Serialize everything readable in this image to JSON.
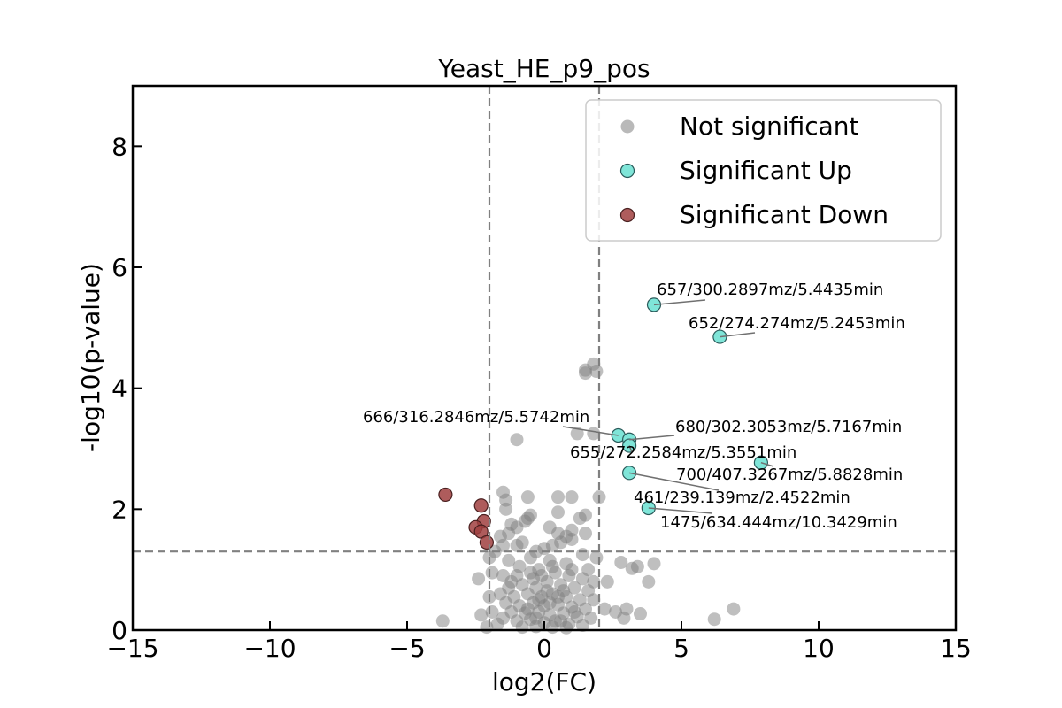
{
  "chart_data": {
    "type": "scatter",
    "title": "Yeast_HE_p9_pos",
    "xlabel": "log2(FC)",
    "ylabel": "-log10(p-value)",
    "xlim": [
      -15,
      15
    ],
    "ylim": [
      0,
      9
    ],
    "x_ticks": [
      -15,
      -10,
      -5,
      0,
      5,
      10,
      15
    ],
    "x_tick_labels": [
      "−15",
      "−10",
      "−5",
      "0",
      "5",
      "10",
      "15"
    ],
    "y_ticks": [
      0,
      2,
      4,
      6,
      8
    ],
    "y_tick_labels": [
      "0",
      "2",
      "4",
      "6",
      "8"
    ],
    "thresholds": {
      "fc": [
        -2,
        2
      ],
      "p": 1.3
    },
    "grid": false,
    "legend_position": "top-right",
    "series": [
      {
        "name": "Not significant",
        "color": "#808080",
        "points": [
          [
            1.8,
            4.4
          ],
          [
            1.5,
            4.3
          ],
          [
            1.5,
            4.25
          ],
          [
            1.9,
            4.28
          ],
          [
            -1,
            3.15
          ],
          [
            1.2,
            3.25
          ],
          [
            1.8,
            3.25
          ],
          [
            -1.5,
            2.28
          ],
          [
            -0.6,
            2.2
          ],
          [
            -1.4,
            2.15
          ],
          [
            -1.4,
            2.0
          ],
          [
            0.5,
            2.2
          ],
          [
            1.0,
            2.2
          ],
          [
            2.0,
            2.2
          ],
          [
            -0.5,
            1.9
          ],
          [
            0.5,
            1.95
          ],
          [
            1.5,
            1.9
          ],
          [
            1.3,
            1.85
          ],
          [
            -1.2,
            1.75
          ],
          [
            -1.0,
            1.7
          ],
          [
            -0.7,
            1.8
          ],
          [
            -0.6,
            1.85
          ],
          [
            0.2,
            1.7
          ],
          [
            1.0,
            1.65
          ],
          [
            -1.6,
            1.55
          ],
          [
            -1.3,
            1.6
          ],
          [
            0.5,
            1.6
          ],
          [
            0.8,
            1.55
          ],
          [
            1.5,
            1.6
          ],
          [
            1.0,
            1.5
          ],
          [
            0.6,
            1.45
          ],
          [
            0.3,
            1.4
          ],
          [
            -1.5,
            1.4
          ],
          [
            -1.0,
            1.4
          ],
          [
            -0.8,
            1.45
          ],
          [
            -0.3,
            1.3
          ],
          [
            0.0,
            1.35
          ],
          [
            1.4,
            1.25
          ],
          [
            1.9,
            1.2
          ],
          [
            -1.3,
            1.15
          ],
          [
            -0.5,
            1.2
          ],
          [
            0.2,
            1.15
          ],
          [
            0.8,
            1.1
          ],
          [
            -0.9,
            1.05
          ],
          [
            -0.2,
            1.0
          ],
          [
            1.0,
            1.0
          ],
          [
            -2.0,
            1.2
          ],
          [
            -1.8,
            1.3
          ],
          [
            2.8,
            1.12
          ],
          [
            3.4,
            1.05
          ],
          [
            3.2,
            1.02
          ],
          [
            4.0,
            1.1
          ],
          [
            3.8,
            0.8
          ],
          [
            2.3,
            0.8
          ],
          [
            -1.9,
            0.95
          ],
          [
            -1.5,
            0.9
          ],
          [
            -2.4,
            0.85
          ],
          [
            -1.0,
            0.9
          ],
          [
            -0.5,
            0.95
          ],
          [
            0.4,
            0.95
          ],
          [
            0.9,
            0.9
          ],
          [
            1.4,
            0.85
          ],
          [
            1.8,
            0.8
          ],
          [
            -1.2,
            0.8
          ],
          [
            -0.8,
            0.75
          ],
          [
            -0.3,
            0.7
          ],
          [
            0.1,
            0.8
          ],
          [
            0.6,
            0.75
          ],
          [
            1.1,
            0.7
          ],
          [
            1.6,
            0.65
          ],
          [
            -1.6,
            0.6
          ],
          [
            -1.1,
            0.55
          ],
          [
            -0.6,
            0.6
          ],
          [
            -0.1,
            0.55
          ],
          [
            0.3,
            0.6
          ],
          [
            0.8,
            0.55
          ],
          [
            1.3,
            0.5
          ],
          [
            -1.4,
            0.45
          ],
          [
            -0.9,
            0.4
          ],
          [
            -0.4,
            0.45
          ],
          [
            0.0,
            0.4
          ],
          [
            0.5,
            0.42
          ],
          [
            1.0,
            0.38
          ],
          [
            1.5,
            0.35
          ],
          [
            -1.2,
            0.3
          ],
          [
            -0.7,
            0.28
          ],
          [
            -0.2,
            0.3
          ],
          [
            0.2,
            0.25
          ],
          [
            0.7,
            0.28
          ],
          [
            1.2,
            0.22
          ],
          [
            1.7,
            0.2
          ],
          [
            -1.5,
            0.2
          ],
          [
            -1.0,
            0.15
          ],
          [
            -0.5,
            0.18
          ],
          [
            0.0,
            0.12
          ],
          [
            0.4,
            0.15
          ],
          [
            0.9,
            0.1
          ],
          [
            1.4,
            0.08
          ],
          [
            -0.8,
            0.05
          ],
          [
            -0.3,
            0.06
          ],
          [
            0.3,
            0.05
          ],
          [
            0.8,
            0.04
          ],
          [
            -1.9,
            0.3
          ],
          [
            -2.3,
            0.25
          ],
          [
            -3.7,
            0.15
          ],
          [
            2.2,
            0.35
          ],
          [
            2.6,
            0.3
          ],
          [
            3.0,
            0.35
          ],
          [
            2.9,
            0.2
          ],
          [
            3.5,
            0.27
          ],
          [
            6.9,
            0.35
          ],
          [
            6.2,
            0.18
          ],
          [
            -0.2,
            0.5
          ],
          [
            0.1,
            0.65
          ],
          [
            -0.6,
            0.35
          ],
          [
            0.6,
            0.15
          ],
          [
            -0.1,
            0.9
          ],
          [
            0.3,
            1.05
          ],
          [
            -0.4,
            0.85
          ],
          [
            0.7,
            0.65
          ],
          [
            1.1,
            0.3
          ],
          [
            -1.3,
            0.7
          ],
          [
            0.2,
            0.45
          ],
          [
            -0.3,
            0.2
          ],
          [
            0.5,
            0.55
          ],
          [
            1.8,
            0.5
          ],
          [
            -1.7,
            0.1
          ],
          [
            -2.1,
            0.05
          ],
          [
            1.6,
            1.0
          ],
          [
            -2.0,
            0.55
          ]
        ]
      },
      {
        "name": "Significant Up",
        "color": "#7FE5D8",
        "points": [
          [
            4.0,
            5.38
          ],
          [
            6.4,
            4.85
          ],
          [
            2.7,
            3.22
          ],
          [
            3.1,
            3.15
          ],
          [
            3.1,
            3.05
          ],
          [
            7.9,
            2.77
          ],
          [
            3.1,
            2.6
          ],
          [
            3.8,
            2.02
          ]
        ]
      },
      {
        "name": "Significant Down",
        "color": "#A04040",
        "points": [
          [
            -3.6,
            2.24
          ],
          [
            -2.3,
            2.06
          ],
          [
            -2.2,
            1.8
          ],
          [
            -2.5,
            1.7
          ],
          [
            -2.3,
            1.63
          ],
          [
            -2.1,
            1.45
          ]
        ]
      }
    ],
    "annotations": [
      {
        "text": "657/300.2897mz/5.4435min",
        "point": [
          4.0,
          5.38
        ]
      },
      {
        "text": "652/274.274mz/5.2453min",
        "point": [
          6.4,
          4.85
        ]
      },
      {
        "text": "666/316.2846mz/5.5742min",
        "point": [
          2.7,
          3.22
        ]
      },
      {
        "text": "680/302.3053mz/5.7167min",
        "point": [
          3.1,
          3.15
        ]
      },
      {
        "text": "655/272.2584mz/5.3551min",
        "point": [
          3.1,
          3.05
        ]
      },
      {
        "text": "700/407.3267mz/5.8828min",
        "point": [
          7.9,
          2.77
        ]
      },
      {
        "text": "461/239.139mz/2.4522min",
        "point": [
          3.1,
          2.6
        ]
      },
      {
        "text": "1475/634.444mz/10.3429min",
        "point": [
          3.8,
          2.02
        ]
      }
    ]
  }
}
